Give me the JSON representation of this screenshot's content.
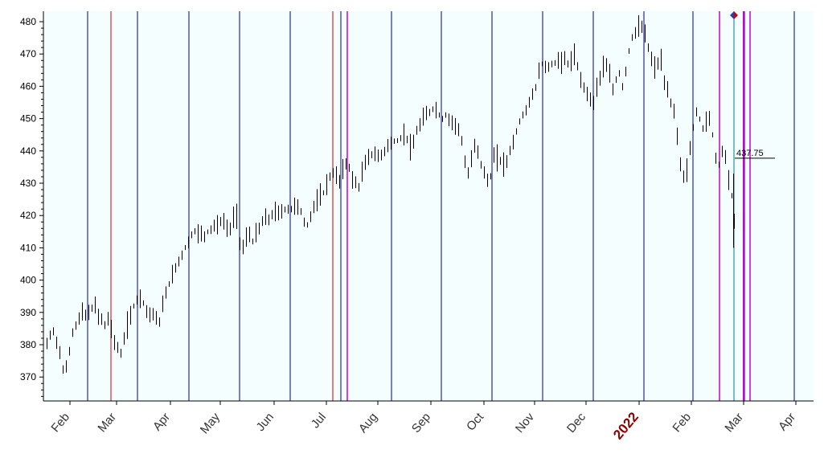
{
  "chart_data": {
    "type": "ohlc",
    "title": "",
    "xlabel": "",
    "ylabel": "",
    "ylim": [
      362,
      483
    ],
    "y_ticks": [
      370,
      380,
      390,
      400,
      410,
      420,
      430,
      440,
      450,
      460,
      470,
      480
    ],
    "x_tick_labels": [
      "Feb",
      "Mar",
      "Apr",
      "May",
      "Jun",
      "Jul",
      "Aug",
      "Sep",
      "Oct",
      "Nov",
      "Dec",
      "2022",
      "Feb",
      "Mar",
      "Apr"
    ],
    "last_price_label": "437.75",
    "grid": false,
    "colors": {
      "plot_background": "#f4fefe",
      "bars": "#000000",
      "cycle_lines_blue": "#00008b",
      "cycle_lines_red": "#cc0000",
      "cycle_lines_magenta": "#cc00cc",
      "current_line_teal": "#008080",
      "year_label": "#8b0000"
    },
    "marker": "diamond-red-blue"
  }
}
